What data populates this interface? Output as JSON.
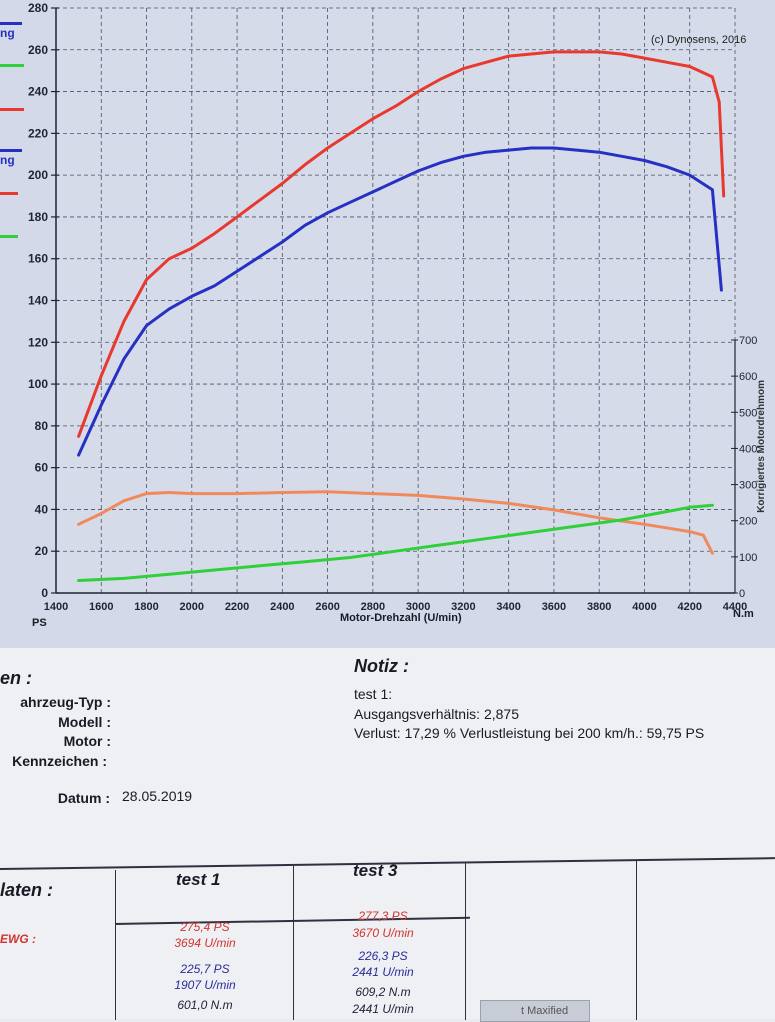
{
  "chart_data": {
    "type": "line",
    "copyright": "(c) Dynosens, 2016",
    "xlabel": "Motor-Drehzahl (U/min)",
    "x_ticks": [
      "1400",
      "1600",
      "1800",
      "2000",
      "2200",
      "2400",
      "2600",
      "2800",
      "3000",
      "3200",
      "3400",
      "3600",
      "3800",
      "4000",
      "4200",
      "4400"
    ],
    "xlim": [
      1400,
      4400
    ],
    "left_axis_unit": "PS",
    "y_ticks": [
      "0",
      "20",
      "40",
      "60",
      "80",
      "100",
      "120",
      "140",
      "160",
      "180",
      "200",
      "220",
      "240",
      "260",
      "280"
    ],
    "ylim": [
      0,
      280
    ],
    "right_axis_unit": "N.m",
    "right_axis_title": "Korrigiertes Motordrehmom",
    "y2_ticks": [
      "0",
      "100",
      "200",
      "300",
      "400",
      "500",
      "600",
      "700"
    ],
    "y2lim": [
      0,
      700
    ],
    "grid": true,
    "series": [
      {
        "axis": "left",
        "color": "#e8392f",
        "x": [
          1500,
          1600,
          1700,
          1800,
          1900,
          2000,
          2100,
          2200,
          2300,
          2400,
          2500,
          2600,
          2700,
          2800,
          2900,
          3000,
          3100,
          3200,
          3300,
          3400,
          3500,
          3600,
          3700,
          3800,
          3900,
          4000,
          4100,
          4200,
          4300,
          4330,
          4350
        ],
        "y": [
          75,
          104,
          130,
          150,
          160,
          165,
          172,
          180,
          188,
          196,
          205,
          213,
          220,
          227,
          233,
          240,
          246,
          251,
          254,
          257,
          258,
          259,
          259,
          259,
          258,
          256,
          254,
          252,
          247,
          235,
          190
        ]
      },
      {
        "axis": "left",
        "color": "#2631c4",
        "x": [
          1500,
          1600,
          1700,
          1800,
          1900,
          2000,
          2100,
          2200,
          2300,
          2400,
          2500,
          2600,
          2700,
          2800,
          2900,
          3000,
          3100,
          3200,
          3300,
          3400,
          3500,
          3600,
          3700,
          3800,
          3900,
          4000,
          4100,
          4200,
          4300,
          4340
        ],
        "y": [
          66,
          90,
          112,
          128,
          136,
          142,
          147,
          154,
          161,
          168,
          176,
          182,
          187,
          192,
          197,
          202,
          206,
          209,
          211,
          212,
          213,
          213,
          212,
          211,
          209,
          207,
          204,
          200,
          193,
          145
        ]
      },
      {
        "axis": "right",
        "color": "#f08a5c",
        "x": [
          1500,
          1600,
          1700,
          1800,
          1900,
          2000,
          2200,
          2400,
          2600,
          2800,
          3000,
          3200,
          3400,
          3600,
          3800,
          4000,
          4200,
          4260,
          4300
        ],
        "y": [
          190,
          220,
          255,
          275,
          278,
          275,
          275,
          278,
          280,
          275,
          270,
          260,
          248,
          230,
          208,
          190,
          170,
          160,
          110
        ]
      },
      {
        "axis": "left",
        "color": "#2fd03a",
        "x": [
          1500,
          1700,
          1900,
          2100,
          2300,
          2500,
          2700,
          2900,
          3100,
          3300,
          3500,
          3700,
          3900,
          4100,
          4200,
          4300
        ],
        "y": [
          6,
          7,
          9,
          11,
          13,
          15,
          17,
          20,
          23,
          26,
          29,
          32,
          35,
          39,
          41,
          42
        ]
      }
    ]
  },
  "legend_fragments": [
    {
      "text": "ng",
      "color": "#2631c4"
    },
    {
      "text": "ng",
      "color": "#2631c4"
    }
  ],
  "legend_line_colors": [
    "#2fd03a",
    "#e8392f",
    "#e8392f",
    "#2fd03a",
    "#e8392f"
  ],
  "info": {
    "section_title": "en :",
    "fields": {
      "vehicle_type": "ahrzeug-Typ :",
      "model": "Modell :",
      "engine": "Motor :",
      "plate": "Kennzeichen :",
      "date_label": "Datum :",
      "date_value": "28.05.2019"
    },
    "notes": {
      "title": "Notiz :",
      "line1": "test 1:",
      "line2": "Ausgangsverhältnis: 2,875",
      "line3": "Verlust: 17,29 %  Verlustleistung bei 200 km/h.: 59,75 PS"
    }
  },
  "table": {
    "row_title": "laten :",
    "row_label": "EWG :",
    "col1_header": "test 1",
    "col2_header": "test 3",
    "col1": {
      "power": "275,4 PS",
      "power_rpm": "3694 U/min",
      "wheel_power": "225,7 PS",
      "wheel_rpm": "1907 U/min",
      "torque": "601,0 N.m"
    },
    "col2": {
      "power": "277,3 PS",
      "power_rpm": "3670 U/min",
      "wheel_power": "226,3 PS",
      "wheel_rpm": "2441 U/min",
      "torque": "609,2 N.m",
      "torque_rpm": "2441 U/min"
    },
    "taskbar_fragment": "t Maxified"
  }
}
